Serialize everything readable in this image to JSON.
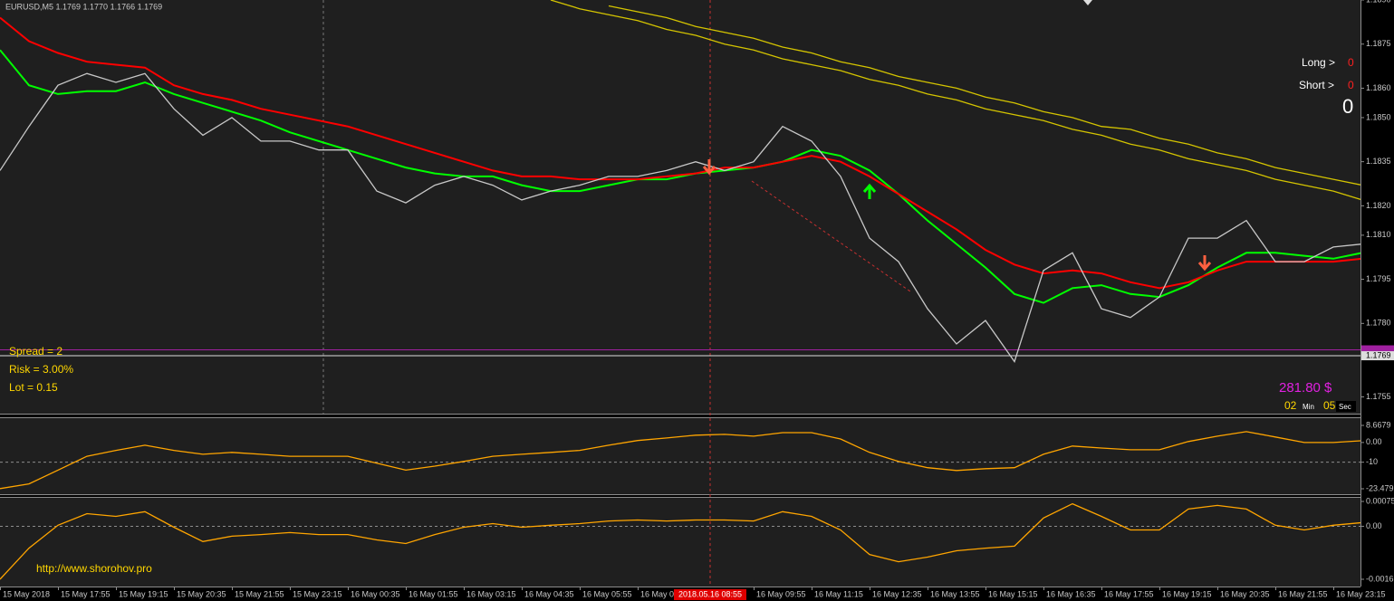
{
  "header": {
    "title": "EURUSD,M5  1.1769 1.1770 1.1766 1.1769"
  },
  "annotations": {
    "long_label": "Long >",
    "long_count": 0,
    "short_label": "Short >",
    "short_count": 0,
    "total_count": 0,
    "spread": "Spread = 2",
    "risk": "Risk = 3.00%",
    "lot": "Lot = 0.15",
    "profit": "281.80 $",
    "timer_min": "02",
    "timer_min_unit": "Min",
    "timer_sec": "05",
    "timer_sec_unit": "Sec",
    "url": "http://www.shorohov.pro",
    "crosshair_label": "2018.05.16 08:55"
  },
  "chart_data": [
    {
      "type": "line",
      "categories": [
        "15 May 2018",
        null,
        "15 May 17:55",
        null,
        "15 May 19:15",
        null,
        "15 May 20:35",
        null,
        "15 May 21:55",
        null,
        "15 May 23:15",
        null,
        "16 May 00:35",
        null,
        "16 May 01:55",
        null,
        "16 May 03:15",
        null,
        "16 May 04:35",
        null,
        "16 May 05:55",
        null,
        "16 May 0",
        null,
        null,
        null,
        "16 May 09:55",
        null,
        "16 May 11:15",
        null,
        "16 May 12:35",
        null,
        "16 May 13:55",
        null,
        "16 May 15:15",
        null,
        "16 May 16:35",
        null,
        "16 May 17:55",
        null,
        "16 May 19:15",
        null,
        "16 May 20:35",
        null,
        "16 May 21:55",
        null,
        "16 May 23:15",
        null
      ],
      "ylim": [
        1.1749,
        1.189
      ],
      "yticks": [
        {
          "value": 1.189,
          "label": "1.1890"
        },
        1.1875,
        {
          "value": 1.186,
          "label": "1.1860"
        },
        {
          "value": 1.185,
          "label": "1.1850"
        },
        1.1835,
        {
          "value": 1.182,
          "label": "1.1820"
        },
        {
          "value": 1.181,
          "label": "1.1810"
        },
        1.1795,
        {
          "value": 1.178,
          "label": "1.1780"
        },
        1.1755
      ],
      "bid": 1.1769,
      "bid_label": "1.1769",
      "ask": 1.1771,
      "series": [
        {
          "color": "#00ff00",
          "values": [
            1.1873,
            1.1861,
            1.1858,
            1.1859,
            1.1859,
            1.1862,
            1.1858,
            1.1855,
            1.1852,
            1.1849,
            1.1845,
            1.1842,
            1.1839,
            1.1836,
            1.1833,
            1.1831,
            1.183,
            1.183,
            1.1827,
            1.1825,
            1.1825,
            1.1827,
            1.1829,
            1.1829,
            1.1831,
            1.1832,
            1.1833,
            1.1835,
            1.1839,
            1.1837,
            1.1832,
            1.1824,
            1.1815,
            1.1807,
            1.1799,
            1.179,
            1.1787,
            1.1792,
            1.1793,
            1.179,
            1.1789,
            1.1793,
            1.1799,
            1.1804,
            1.1804,
            1.1803,
            1.1802,
            1.1804
          ]
        },
        {
          "color": "#ff0000",
          "values": [
            1.1884,
            1.1876,
            1.1872,
            1.1869,
            1.1868,
            1.1867,
            1.1861,
            1.1858,
            1.1856,
            1.1853,
            1.1851,
            1.1849,
            1.1847,
            1.1844,
            1.1841,
            1.1838,
            1.1835,
            1.1832,
            1.183,
            1.183,
            1.1829,
            1.1829,
            1.1829,
            1.183,
            1.1831,
            1.1833,
            1.1833,
            1.1835,
            1.1837,
            1.1835,
            1.183,
            1.1824,
            1.1818,
            1.1812,
            1.1805,
            1.18,
            1.1797,
            1.1798,
            1.1797,
            1.1794,
            1.1792,
            1.1794,
            1.1798,
            1.1801,
            1.1801,
            1.1801,
            1.1801,
            1.1802
          ]
        },
        {
          "color": "#c8c8c8",
          "values": [
            1.1832,
            1.1847,
            1.1861,
            1.1865,
            1.1862,
            1.1865,
            1.1853,
            1.1844,
            1.185,
            1.1842,
            1.1842,
            1.1839,
            1.1839,
            1.1825,
            1.1821,
            1.1827,
            1.183,
            1.1827,
            1.1822,
            1.1825,
            1.1827,
            1.183,
            1.183,
            1.1832,
            1.1835,
            1.1832,
            1.1835,
            1.1847,
            1.1842,
            1.183,
            1.1809,
            1.1801,
            1.1785,
            1.1773,
            1.1781,
            1.1767,
            1.1798,
            1.1804,
            1.1785,
            1.1782,
            1.1789,
            1.1809,
            1.1809,
            1.1815,
            1.1801,
            1.1801,
            1.1806,
            1.1807
          ]
        },
        {
          "color": "#d4c400",
          "values": [
            null,
            null,
            null,
            null,
            null,
            null,
            null,
            null,
            null,
            null,
            null,
            null,
            null,
            null,
            null,
            null,
            null,
            null,
            null,
            1.189,
            1.1887,
            1.1885,
            1.1883,
            1.188,
            1.1878,
            1.1875,
            1.1873,
            1.187,
            1.1868,
            1.1866,
            1.1863,
            1.1861,
            1.1858,
            1.1856,
            1.1853,
            1.1851,
            1.1849,
            1.1846,
            1.1844,
            1.1841,
            1.1839,
            1.1836,
            1.1834,
            1.1832,
            1.1829,
            1.1827,
            1.1825,
            1.1822
          ]
        },
        {
          "color": "#d4c400",
          "values": [
            null,
            null,
            null,
            null,
            null,
            null,
            null,
            null,
            null,
            null,
            null,
            null,
            null,
            null,
            null,
            null,
            null,
            null,
            null,
            null,
            null,
            1.1888,
            1.1886,
            1.1884,
            1.1881,
            1.1879,
            1.1877,
            1.1874,
            1.1872,
            1.1869,
            1.1867,
            1.1864,
            1.1862,
            1.186,
            1.1857,
            1.1855,
            1.1852,
            1.185,
            1.1847,
            1.1846,
            1.1843,
            1.1841,
            1.1838,
            1.1836,
            1.1833,
            1.1831,
            1.1829,
            1.1827
          ]
        }
      ]
    },
    {
      "type": "line",
      "ylim": [
        -23.4795,
        8.6679
      ],
      "yticks": [
        8.6679,
        {
          "value": 0,
          "label": "0.00"
        },
        -10,
        -23.4795
      ],
      "ref_line": -10,
      "series": [
        {
          "color": "#ffa500",
          "values": [
            -23.4,
            -21,
            -14,
            -7,
            -4,
            -1.4,
            -4,
            -6,
            -5,
            -6,
            -7,
            -7,
            -7,
            -10.5,
            -14,
            -12,
            -9.6,
            -7,
            -6,
            -5,
            -4,
            -1.4,
            1,
            2.3,
            3.7,
            4.1,
            3.2,
            5,
            5,
            1.8,
            -5,
            -9.6,
            -12.8,
            -14.2,
            -13.3,
            -12.8,
            -6,
            -1.8,
            -2.8,
            -3.7,
            -3.7,
            0.5,
            3.2,
            5.5,
            2.8,
            0,
            0,
            0.9
          ]
        }
      ]
    },
    {
      "type": "line",
      "ylim": [
        -0.0016,
        0.00075
      ],
      "yticks": [
        0.00075,
        {
          "value": 0,
          "label": "0.00"
        },
        -0.0016
      ],
      "ref_line": 0,
      "series": [
        {
          "color": "#ffa500",
          "values": [
            -0.0016,
            -0.00066,
            3e-05,
            0.00038,
            0.0003,
            0.00044,
            -3e-05,
            -0.00046,
            -0.0003,
            -0.00025,
            -0.00019,
            -0.00025,
            -0.00025,
            -0.00041,
            -0.00052,
            -0.00025,
            -3e-05,
            8e-05,
            -3e-05,
            3e-05,
            8e-05,
            0.00016,
            0.00019,
            0.00016,
            0.00019,
            0.00019,
            0.00016,
            0.00044,
            0.0003,
            -0.00011,
            -0.00085,
            -0.00107,
            -0.00093,
            -0.00074,
            -0.00066,
            -0.0006,
            0.00025,
            0.00068,
            0.0003,
            -0.00011,
            -0.00011,
            0.00052,
            0.00063,
            0.00052,
            3e-05,
            -0.00011,
            3e-05,
            0.00011
          ]
        }
      ]
    }
  ]
}
